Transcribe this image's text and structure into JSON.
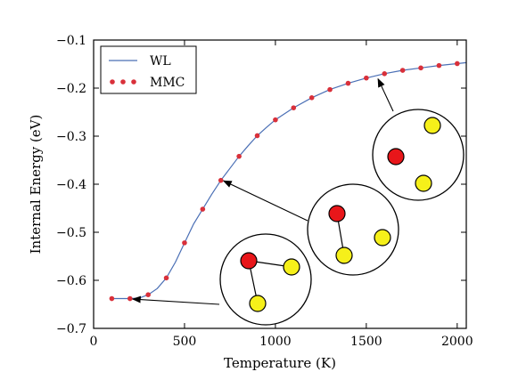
{
  "chart_data": {
    "type": "line",
    "xlabel": "Temperature (K)",
    "ylabel": "Internal Energy (eV)",
    "xlim": [
      0,
      2050
    ],
    "ylim": [
      -0.7,
      -0.1
    ],
    "xticks": [
      0,
      500,
      1000,
      1500,
      2000
    ],
    "yticks": [
      -0.7,
      -0.6,
      -0.5,
      -0.4,
      -0.3,
      -0.2,
      -0.1
    ],
    "xtick_labels": [
      "0",
      "500",
      "1000",
      "1500",
      "2000"
    ],
    "ytick_labels": [
      "−0.7",
      "−0.6",
      "−0.5",
      "−0.4",
      "−0.3",
      "−0.2",
      "−0.1"
    ],
    "legend_position": "top-left",
    "series": [
      {
        "name": "WL",
        "style": "line",
        "color": "#4a6fb5",
        "x": [
          100,
          200,
          250,
          300,
          350,
          400,
          450,
          500,
          550,
          600,
          650,
          700,
          750,
          800,
          850,
          900,
          950,
          1000,
          1100,
          1200,
          1300,
          1400,
          1500,
          1600,
          1700,
          1800,
          1900,
          2000,
          2050
        ],
        "y": [
          -0.638,
          -0.638,
          -0.637,
          -0.63,
          -0.617,
          -0.595,
          -0.562,
          -0.522,
          -0.483,
          -0.452,
          -0.421,
          -0.392,
          -0.367,
          -0.342,
          -0.32,
          -0.299,
          -0.282,
          -0.266,
          -0.241,
          -0.22,
          -0.203,
          -0.19,
          -0.179,
          -0.17,
          -0.163,
          -0.158,
          -0.153,
          -0.149,
          -0.147
        ]
      },
      {
        "name": "MMC",
        "style": "markers",
        "color": "#d9303a",
        "x": [
          100,
          200,
          300,
          400,
          500,
          600,
          700,
          800,
          900,
          1000,
          1100,
          1200,
          1300,
          1400,
          1500,
          1600,
          1700,
          1800,
          1900,
          2000
        ],
        "y": [
          -0.638,
          -0.638,
          -0.63,
          -0.595,
          -0.522,
          -0.452,
          -0.392,
          -0.342,
          -0.299,
          -0.266,
          -0.241,
          -0.22,
          -0.203,
          -0.19,
          -0.179,
          -0.17,
          -0.163,
          -0.158,
          -0.153,
          -0.149
        ]
      }
    ],
    "annotations": [
      {
        "type": "cluster-inset",
        "arrow_to": [
          200,
          -0.638
        ],
        "atoms": [
          {
            "kind": "red",
            "color": "#e8161a"
          },
          {
            "kind": "yellow",
            "color": "#f6f01a"
          },
          {
            "kind": "yellow",
            "color": "#f6f01a"
          }
        ],
        "bonds": [
          [
            0,
            1
          ],
          [
            0,
            2
          ]
        ]
      },
      {
        "type": "cluster-inset",
        "arrow_to": [
          700,
          -0.392
        ],
        "atoms": [
          {
            "kind": "red",
            "color": "#e8161a"
          },
          {
            "kind": "yellow",
            "color": "#f6f01a"
          },
          {
            "kind": "yellow",
            "color": "#f6f01a"
          }
        ],
        "bonds": [
          [
            0,
            1
          ]
        ]
      },
      {
        "type": "cluster-inset",
        "arrow_to": [
          1550,
          -0.18
        ],
        "atoms": [
          {
            "kind": "red",
            "color": "#e8161a"
          },
          {
            "kind": "yellow",
            "color": "#f6f01a"
          },
          {
            "kind": "yellow",
            "color": "#f6f01a"
          }
        ],
        "bonds": []
      }
    ]
  }
}
